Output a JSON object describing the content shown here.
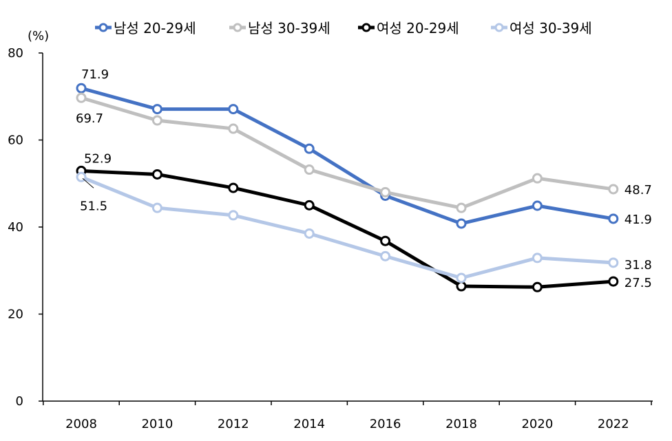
{
  "chart_data": {
    "type": "line",
    "ylabel": "(%)",
    "x": [
      "2008",
      "2010",
      "2012",
      "2014",
      "2016",
      "2018",
      "2020",
      "2022"
    ],
    "ylim": [
      0,
      80
    ],
    "yticks": [
      "0",
      "20",
      "40",
      "60",
      "80"
    ],
    "grid": false,
    "legend_position": "top",
    "series": [
      {
        "name": "남성 20-29세",
        "color": "#4472C4",
        "values": [
          71.9,
          67.1,
          67.1,
          58.0,
          47.2,
          40.8,
          44.9,
          41.9
        ]
      },
      {
        "name": "남성 30-39세",
        "color": "#BFBFBF",
        "values": [
          69.7,
          64.5,
          62.6,
          53.2,
          48.0,
          44.4,
          51.2,
          48.7
        ]
      },
      {
        "name": "여성 20-29세",
        "color": "#000000",
        "values": [
          52.9,
          52.1,
          49.0,
          45.0,
          36.8,
          26.4,
          26.2,
          27.5
        ]
      },
      {
        "name": "여성 30-39세",
        "color": "#B4C7E7",
        "values": [
          51.5,
          44.4,
          42.7,
          38.5,
          33.3,
          28.3,
          32.9,
          31.8
        ]
      }
    ],
    "data_labels": [
      {
        "series": 0,
        "index": 0,
        "text": "71.9"
      },
      {
        "series": 1,
        "index": 0,
        "text": "69.7"
      },
      {
        "series": 2,
        "index": 0,
        "text": "52.9"
      },
      {
        "series": 3,
        "index": 0,
        "text": "51.5"
      },
      {
        "series": 1,
        "index": 7,
        "text": "48.7"
      },
      {
        "series": 0,
        "index": 7,
        "text": "41.9"
      },
      {
        "series": 3,
        "index": 7,
        "text": "31.8"
      },
      {
        "series": 2,
        "index": 7,
        "text": "27.5"
      }
    ]
  }
}
